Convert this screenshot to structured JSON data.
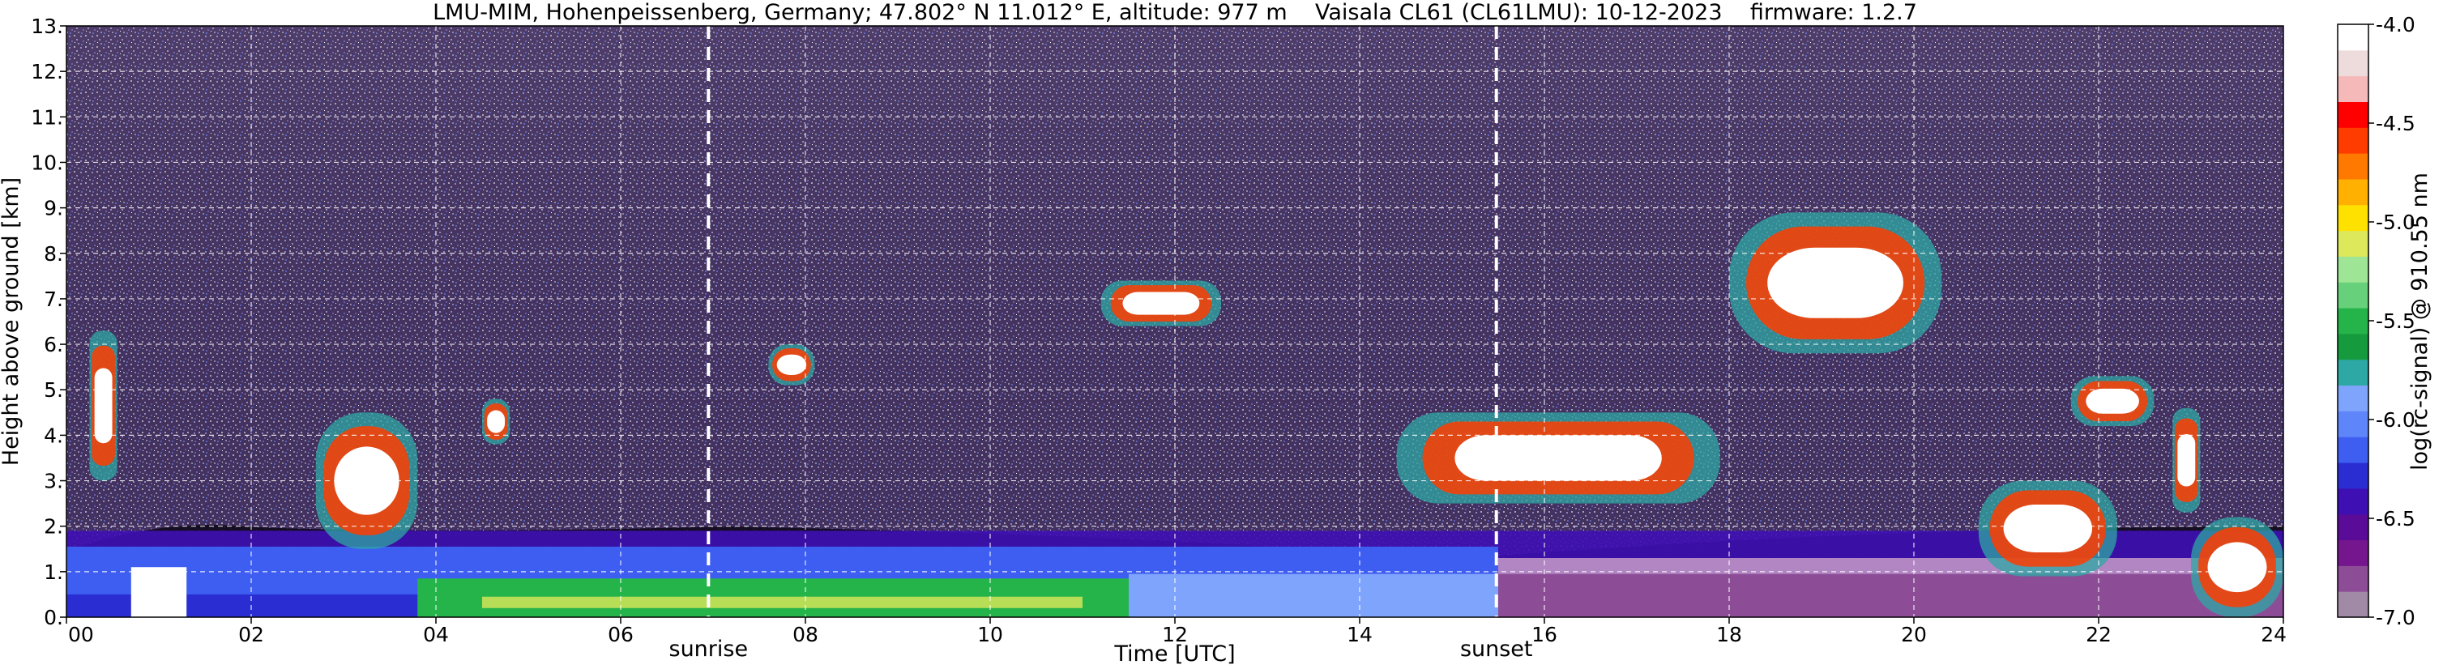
{
  "chart_data": {
    "type": "heatmap",
    "title": "LMU-MIM, Hohenpeissenberg, Germany; 47.802° N 11.012° E, altitude: 977 m    Vaisala CL61 (CL61LMU): 10-12-2023    firmware: 1.2.7",
    "xlabel": "Time [UTC]",
    "ylabel": "Height above ground [km]",
    "xlim": [
      0,
      24
    ],
    "ylim": [
      0,
      13
    ],
    "xticks": [
      "00",
      "02",
      "04",
      "06",
      "08",
      "10",
      "12",
      "14",
      "16",
      "18",
      "20",
      "22",
      "24"
    ],
    "yticks": [
      "0.",
      "1.",
      "2.",
      "3.",
      "4.",
      "5.",
      "6.",
      "7.",
      "8.",
      "9.",
      "10.",
      "11.",
      "12.",
      "13."
    ],
    "grid": true,
    "markers": [
      {
        "label": "sunrise",
        "time_h": 6.95
      },
      {
        "label": "sunset",
        "time_h": 15.48
      }
    ],
    "colorbar": {
      "label": "log(rc-signal) @ 910.55 nm",
      "range": [
        -7.0,
        -4.0
      ],
      "ticks": [
        "-4.0",
        "-4.5",
        "-5.0",
        "-5.5",
        "-6.0",
        "-6.5",
        "-7.0"
      ],
      "colors": [
        "#a08aa6",
        "#8c4d96",
        "#75168e",
        "#5a0c99",
        "#3e10b4",
        "#2a2ed2",
        "#3e5ef2",
        "#5e86fa",
        "#7fa4fc",
        "#2ea8a4",
        "#169a3e",
        "#25b44a",
        "#66d07a",
        "#9ee696",
        "#dde85a",
        "#ffe100",
        "#ffb000",
        "#ff7800",
        "#ff3c00",
        "#ff0000",
        "#f6b9b9",
        "#eedcdc",
        "#ffffff"
      ]
    },
    "features": [
      {
        "kind": "aerosol boundary layer",
        "time_h": [
          0,
          24
        ],
        "height_km": [
          0,
          1.9
        ]
      },
      {
        "kind": "cloud",
        "time_h": [
          0.25,
          0.55
        ],
        "height_km": [
          3.0,
          6.3
        ]
      },
      {
        "kind": "cloud",
        "time_h": [
          2.7,
          3.8
        ],
        "height_km": [
          1.5,
          4.5
        ]
      },
      {
        "kind": "cloud",
        "time_h": [
          4.5,
          4.8
        ],
        "height_km": [
          3.8,
          4.8
        ]
      },
      {
        "kind": "cloud",
        "time_h": [
          7.6,
          8.1
        ],
        "height_km": [
          5.1,
          6.0
        ]
      },
      {
        "kind": "cloud",
        "time_h": [
          11.2,
          12.5
        ],
        "height_km": [
          6.4,
          7.4
        ]
      },
      {
        "kind": "cloud",
        "time_h": [
          14.4,
          17.9
        ],
        "height_km": [
          2.5,
          4.5
        ]
      },
      {
        "kind": "cloud",
        "time_h": [
          18.0,
          20.3
        ],
        "height_km": [
          5.8,
          8.9
        ]
      },
      {
        "kind": "cloud",
        "time_h": [
          20.7,
          22.2
        ],
        "height_km": [
          0.9,
          3.0
        ]
      },
      {
        "kind": "cloud",
        "time_h": [
          21.7,
          22.6
        ],
        "height_km": [
          4.2,
          5.3
        ]
      },
      {
        "kind": "cloud",
        "time_h": [
          22.8,
          23.1
        ],
        "height_km": [
          2.3,
          4.6
        ]
      },
      {
        "kind": "cloud",
        "time_h": [
          23.0,
          24.0
        ],
        "height_km": [
          0,
          2.2
        ]
      }
    ]
  }
}
